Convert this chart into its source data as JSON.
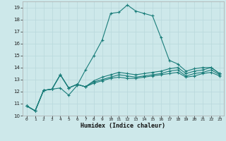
{
  "background_color": "#cde8ea",
  "grid_color": "#b8d8db",
  "line_color": "#1a7d7a",
  "marker_color": "#1a7d7a",
  "xlabel": "Humidex (Indice chaleur)",
  "xlim": [
    -0.5,
    23.5
  ],
  "ylim": [
    10,
    19.5
  ],
  "yticks": [
    10,
    11,
    12,
    13,
    14,
    15,
    16,
    17,
    18,
    19
  ],
  "xticks": [
    0,
    1,
    2,
    3,
    4,
    5,
    6,
    7,
    8,
    9,
    10,
    11,
    12,
    13,
    14,
    15,
    16,
    17,
    18,
    19,
    20,
    21,
    22,
    23
  ],
  "series": [
    [
      10.8,
      10.4,
      12.1,
      12.2,
      12.3,
      11.7,
      12.5,
      13.8,
      15.0,
      16.3,
      18.5,
      18.6,
      19.2,
      18.7,
      18.5,
      18.3,
      16.5,
      14.6,
      14.3,
      13.7,
      13.9,
      14.0,
      14.0,
      13.5
    ],
    [
      10.8,
      10.4,
      12.1,
      12.2,
      13.4,
      12.3,
      12.6,
      12.4,
      12.9,
      13.2,
      13.4,
      13.6,
      13.5,
      13.4,
      13.5,
      13.6,
      13.7,
      13.9,
      14.0,
      13.5,
      13.7,
      13.8,
      14.0,
      13.5
    ],
    [
      10.8,
      10.4,
      12.1,
      12.2,
      13.4,
      12.3,
      12.6,
      12.4,
      12.8,
      13.0,
      13.2,
      13.4,
      13.3,
      13.2,
      13.3,
      13.4,
      13.5,
      13.7,
      13.8,
      13.3,
      13.5,
      13.6,
      13.8,
      13.4
    ],
    [
      10.8,
      10.4,
      12.1,
      12.2,
      13.4,
      12.3,
      12.6,
      12.4,
      12.7,
      12.9,
      13.1,
      13.2,
      13.1,
      13.1,
      13.2,
      13.3,
      13.4,
      13.5,
      13.6,
      13.2,
      13.3,
      13.5,
      13.6,
      13.3
    ]
  ]
}
